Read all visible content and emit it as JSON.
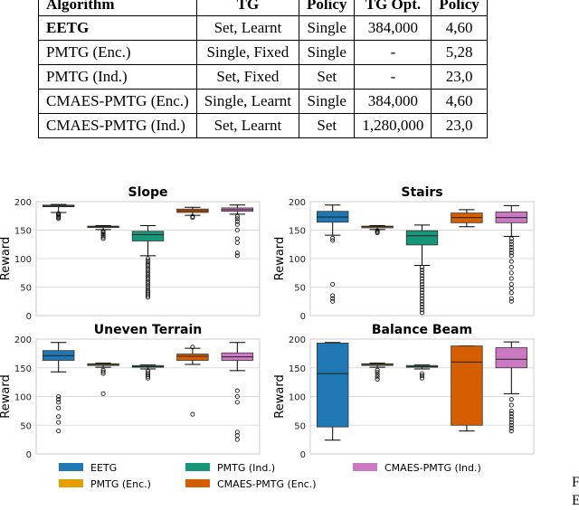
{
  "table": {
    "headers": [
      "Algorithm",
      "TG",
      "Policy",
      "TG Opt.",
      "Policy"
    ],
    "rows": [
      [
        "EETG",
        "Set, Learnt",
        "Single",
        "384,000",
        "4,60"
      ],
      [
        "PMTG (Enc.)",
        "Single, Fixed",
        "Single",
        "-",
        "5,28"
      ],
      [
        "PMTG (Ind.)",
        "Set, Fixed",
        "Set",
        "-",
        "23,0"
      ],
      [
        "CMAES-PMTG (Enc.)",
        "Single, Learnt",
        "Single",
        "384,000",
        "4,60"
      ],
      [
        "CMAES-PMTG (Ind.)",
        "Set, Learnt",
        "Set",
        "1,280,000",
        "23,0"
      ]
    ]
  },
  "side_caption": [
    "F",
    "E"
  ],
  "legend": [
    {
      "label": "EETG",
      "color": "#1f77b4"
    },
    {
      "label": "PMTG (Ind.)",
      "color": "#17967a"
    },
    {
      "label": "CMAES-PMTG (Ind.)",
      "color": "#cc79c3"
    },
    {
      "label": "PMTG (Enc.)",
      "color": "#e69f00"
    },
    {
      "label": "CMAES-PMTG (Enc.)",
      "color": "#d55e00"
    }
  ],
  "chart_data": [
    {
      "type": "box",
      "title": "Slope",
      "ylabel": "Reward",
      "ylim": [
        0,
        200
      ],
      "yticks": [
        0,
        50,
        100,
        150,
        200
      ],
      "series": [
        {
          "q1": 191,
          "median": 192,
          "q3": 194,
          "whislo": 181,
          "whishi": 195,
          "outliers": [
            170,
            172,
            174,
            176,
            178,
            179
          ]
        },
        {
          "q1": 155,
          "median": 156,
          "q3": 157,
          "whislo": 151,
          "whishi": 158,
          "outliers": [
            135,
            138,
            141,
            143,
            146,
            148
          ]
        },
        {
          "q1": 131,
          "median": 142,
          "q3": 148,
          "whislo": 105,
          "whishi": 158,
          "outliers": [
            32,
            35,
            38,
            41,
            44,
            48,
            52,
            56,
            60,
            64,
            68,
            72,
            76,
            80,
            84,
            88,
            92,
            96,
            100
          ]
        },
        {
          "q1": 181,
          "median": 184,
          "q3": 187,
          "whislo": 176,
          "whishi": 190,
          "outliers": [
            172,
            174
          ]
        },
        {
          "q1": 183,
          "median": 186,
          "q3": 189,
          "whislo": 178,
          "whishi": 194,
          "outliers": [
            105,
            110,
            128,
            135,
            150,
            160,
            165,
            170,
            174
          ]
        }
      ]
    },
    {
      "type": "box",
      "title": "Stairs",
      "ylabel": "Reward",
      "ylim": [
        0,
        200
      ],
      "yticks": [
        0,
        50,
        100,
        150,
        200
      ],
      "series": [
        {
          "q1": 164,
          "median": 173,
          "q3": 183,
          "whislo": 141,
          "whishi": 194,
          "outliers": [
            25,
            30,
            35,
            55,
            132,
            136
          ]
        },
        {
          "q1": 154,
          "median": 156,
          "q3": 157,
          "whislo": 151,
          "whishi": 158,
          "outliers": [
            145,
            147,
            149
          ]
        },
        {
          "q1": 124,
          "median": 140,
          "q3": 149,
          "whislo": 88,
          "whishi": 159,
          "outliers": [
            5,
            10,
            15,
            20,
            25,
            30,
            35,
            40,
            45,
            50,
            55,
            60,
            65,
            70,
            75,
            80,
            85
          ]
        },
        {
          "q1": 163,
          "median": 172,
          "q3": 180,
          "whislo": 156,
          "whishi": 186,
          "outliers": []
        },
        {
          "q1": 163,
          "median": 172,
          "q3": 182,
          "whislo": 139,
          "whishi": 193,
          "outliers": [
            25,
            30,
            40,
            48,
            55,
            65,
            75,
            85,
            95,
            105,
            110,
            115,
            120,
            125,
            130,
            135
          ]
        }
      ]
    },
    {
      "type": "box",
      "title": "Uneven Terrain",
      "ylabel": "Reward",
      "ylim": [
        0,
        200
      ],
      "yticks": [
        0,
        50,
        100,
        150,
        200
      ],
      "series": [
        {
          "q1": 163,
          "median": 171,
          "q3": 180,
          "whislo": 143,
          "whishi": 194,
          "outliers": [
            40,
            55,
            65,
            80,
            90,
            95,
            100
          ]
        },
        {
          "q1": 154,
          "median": 156,
          "q3": 157,
          "whislo": 151,
          "whishi": 158,
          "outliers": [
            105,
            140,
            143,
            146
          ]
        },
        {
          "q1": 151,
          "median": 152,
          "q3": 154,
          "whislo": 148,
          "whishi": 155,
          "outliers": [
            132,
            135,
            138,
            141,
            144
          ]
        },
        {
          "q1": 163,
          "median": 170,
          "q3": 174,
          "whislo": 156,
          "whishi": 184,
          "outliers": [
            69,
            186
          ]
        },
        {
          "q1": 163,
          "median": 169,
          "q3": 176,
          "whislo": 145,
          "whishi": 194,
          "outliers": [
            25,
            32,
            38,
            90,
            100,
            110
          ]
        }
      ]
    },
    {
      "type": "box",
      "title": "Balance Beam",
      "ylabel": "Reward",
      "ylim": [
        0,
        200
      ],
      "yticks": [
        0,
        50,
        100,
        150,
        200
      ],
      "series": [
        {
          "q1": 47,
          "median": 140,
          "q3": 193,
          "whislo": 24,
          "whishi": 194,
          "outliers": []
        },
        {
          "q1": 154,
          "median": 156,
          "q3": 157,
          "whislo": 151,
          "whishi": 158,
          "outliers": [
            130,
            134,
            138,
            142,
            146
          ]
        },
        {
          "q1": 151,
          "median": 152,
          "q3": 154,
          "whislo": 148,
          "whishi": 155,
          "outliers": [
            132,
            136,
            140
          ]
        },
        {
          "q1": 50,
          "median": 160,
          "q3": 188,
          "whislo": 40,
          "whishi": 188,
          "outliers": []
        },
        {
          "q1": 150,
          "median": 165,
          "q3": 185,
          "whislo": 105,
          "whishi": 195,
          "outliers": [
            40,
            45,
            50,
            55,
            60,
            65,
            70,
            75,
            85,
            95
          ]
        }
      ]
    }
  ]
}
